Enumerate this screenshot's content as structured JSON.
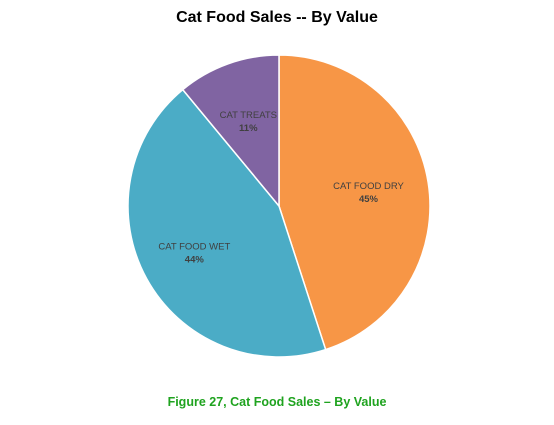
{
  "colors": {
    "dry": "#F79646",
    "wet": "#4BACC6",
    "treats": "#8064A2",
    "caption": "#1FA31F"
  },
  "chart_data": {
    "type": "pie",
    "title": "Cat Food Sales -- By Value",
    "slices": [
      {
        "label": "CAT FOOD DRY",
        "value": 45,
        "display": "45%",
        "color": "#F79646"
      },
      {
        "label": "CAT FOOD WET",
        "value": 44,
        "display": "44%",
        "color": "#4BACC6"
      },
      {
        "label": "CAT TREATS",
        "value": 11,
        "display": "11%",
        "color": "#8064A2"
      }
    ],
    "legend": "none",
    "data_labels": "category and percentage inside slices"
  },
  "caption": "Figure 27, Cat Food Sales – By Value"
}
